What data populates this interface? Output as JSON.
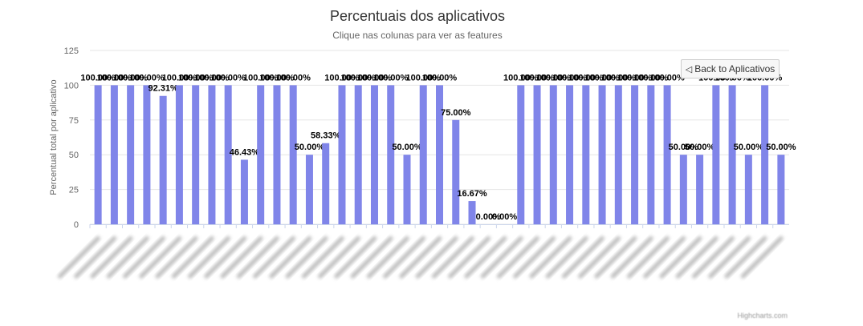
{
  "header": {
    "title": "Percentuais dos aplicativos",
    "subtitle": "Clique nas colunas para ver as features"
  },
  "drilldown": {
    "back_label": "Back to Aplicativos"
  },
  "credit": "Highcharts.com",
  "chart_data": {
    "type": "bar",
    "ylabel": "Percentual total por aplicativo",
    "ylim": [
      0,
      125
    ],
    "yticks": [
      0,
      25,
      50,
      75,
      100,
      125
    ],
    "grid": true,
    "bar_color": "#8085e9",
    "values": [
      100,
      100,
      100,
      100,
      92.31,
      100,
      100,
      100,
      100,
      46.43,
      100,
      100,
      100,
      50,
      58.33,
      100,
      100,
      100,
      100,
      50,
      100,
      100,
      75,
      16.67,
      0,
      0,
      100,
      100,
      100,
      100,
      100,
      100,
      100,
      100,
      100,
      100,
      50,
      50,
      100,
      100,
      50,
      100,
      50
    ],
    "labels": [
      "100.00%",
      "100.00%",
      "100.00%",
      "100.00%",
      "92.31%",
      "100.00%",
      "100.00%",
      "100.00%",
      "100.00%",
      "46.43%",
      "100.00%",
      "100.00%",
      "100.00%",
      "50.00%",
      "58.33%",
      "100.00%",
      "100.00%",
      "100.00%",
      "100.00%",
      "50.00%",
      "100.00%",
      "100.00%",
      "75.00%",
      "16.67%",
      "0.00%",
      "0.00%",
      "100.00%",
      "100.00%",
      "100.00%",
      "100.00%",
      "100.00%",
      "100.00%",
      "100.00%",
      "100.00%",
      "100.00%",
      "100.00%",
      "50.00%",
      "50.00%",
      "100.00%",
      "100.00%",
      "50.00%",
      "100.00%",
      "50.00%"
    ]
  }
}
